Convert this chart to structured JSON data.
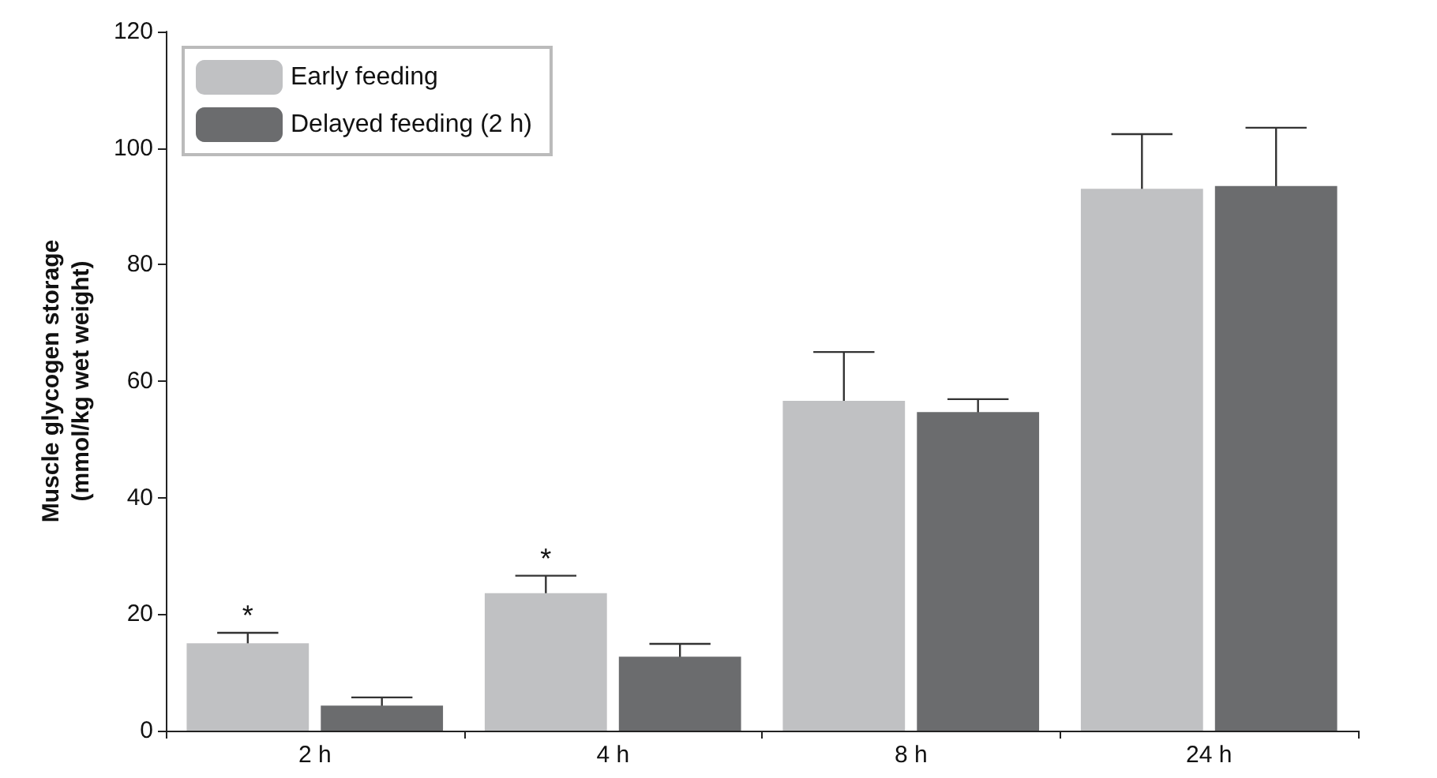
{
  "chart_data": {
    "type": "bar",
    "ylabel": "Muscle glycogen storage\n(mmol/kg wet weight)",
    "categories": [
      "2 h",
      "4 h",
      "8 h",
      "24 h"
    ],
    "series": [
      {
        "name": "Early feeding",
        "color": "#c0c1c3",
        "values": [
          15,
          23.6,
          56.6,
          93
        ],
        "errors": [
          1.8,
          3,
          8.4,
          9.4
        ],
        "value_labels": [
          "*",
          "*",
          null,
          null
        ]
      },
      {
        "name": "Delayed feeding (2 h)",
        "color": "#6b6c6e",
        "values": [
          4.3,
          12.7,
          54.7,
          93.5
        ],
        "errors": [
          1.4,
          2.2,
          2.2,
          10
        ]
      }
    ],
    "ylim": [
      0,
      120
    ],
    "yticks": [
      0,
      20,
      40,
      60,
      80,
      100,
      120
    ],
    "legend": "top left",
    "grid": false
  }
}
